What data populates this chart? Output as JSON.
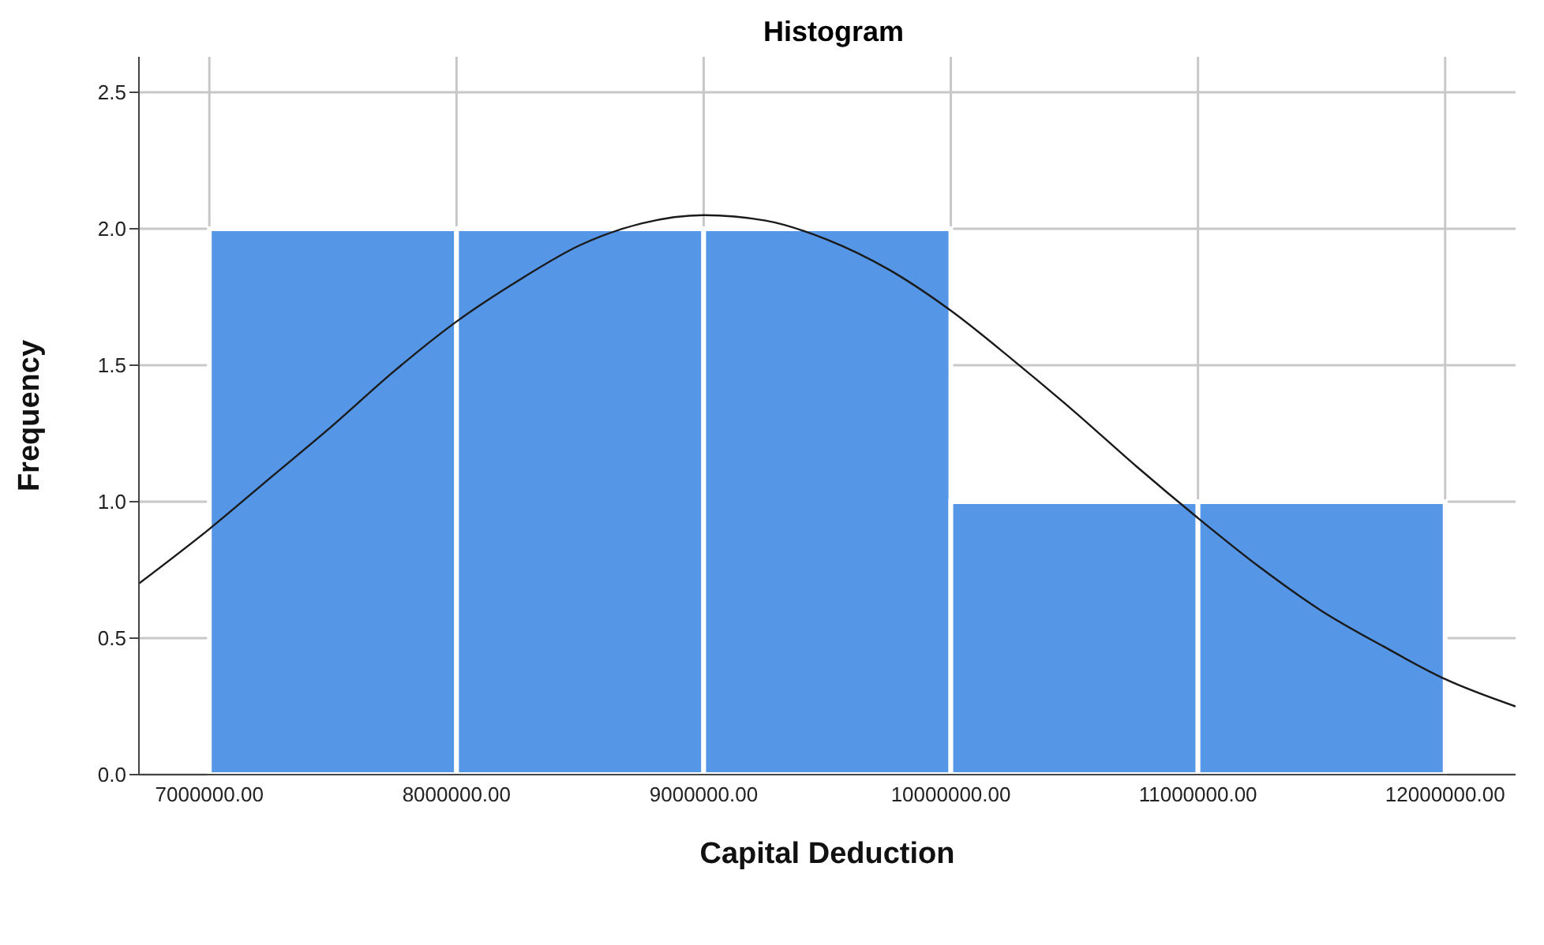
{
  "chart_data": {
    "type": "histogram",
    "title": "Histogram",
    "xlabel": "Capital Deduction",
    "ylabel": "Frequency",
    "bins": [
      7000000,
      8000000,
      9000000,
      10000000,
      11000000,
      12000000
    ],
    "values": [
      2,
      2,
      2,
      1,
      1
    ],
    "color": "#5596e6",
    "series": [
      {
        "type": "line",
        "color": "#1a1a1a",
        "x": [
          6715000,
          7000000,
          7250000,
          7500000,
          7750000,
          8000000,
          8250000,
          8500000,
          8750000,
          9000000,
          9250000,
          9500000,
          9750000,
          10000000,
          10250000,
          10500000,
          10750000,
          11000000,
          11250000,
          11500000,
          11750000,
          12000000,
          12285000
        ],
        "values": [
          0.7,
          0.9,
          1.09,
          1.28,
          1.48,
          1.66,
          1.81,
          1.94,
          2.02,
          2.05,
          2.03,
          1.96,
          1.85,
          1.7,
          1.52,
          1.33,
          1.13,
          0.94,
          0.76,
          0.6,
          0.47,
          0.35,
          0.25
        ]
      }
    ],
    "xlim": [
      6715000,
      12285000
    ],
    "xticks": [
      {
        "value": 7000000,
        "label": "7000000.00"
      },
      {
        "value": 8000000,
        "label": "8000000.00"
      },
      {
        "value": 9000000,
        "label": "9000000.00"
      },
      {
        "value": 10000000,
        "label": "10000000.00"
      },
      {
        "value": 11000000,
        "label": "11000000.00"
      },
      {
        "value": 12000000,
        "label": "12000000.00"
      }
    ],
    "ylim": [
      0,
      2.63
    ],
    "yticks": [
      {
        "value": 0,
        "label": "0.0"
      },
      {
        "value": 0.5,
        "label": "0.5"
      },
      {
        "value": 1,
        "label": "1.0"
      },
      {
        "value": 1.5,
        "label": "1.5"
      },
      {
        "value": 2,
        "label": "2.0"
      },
      {
        "value": 2.5,
        "label": "2.5"
      }
    ],
    "grid": true
  }
}
